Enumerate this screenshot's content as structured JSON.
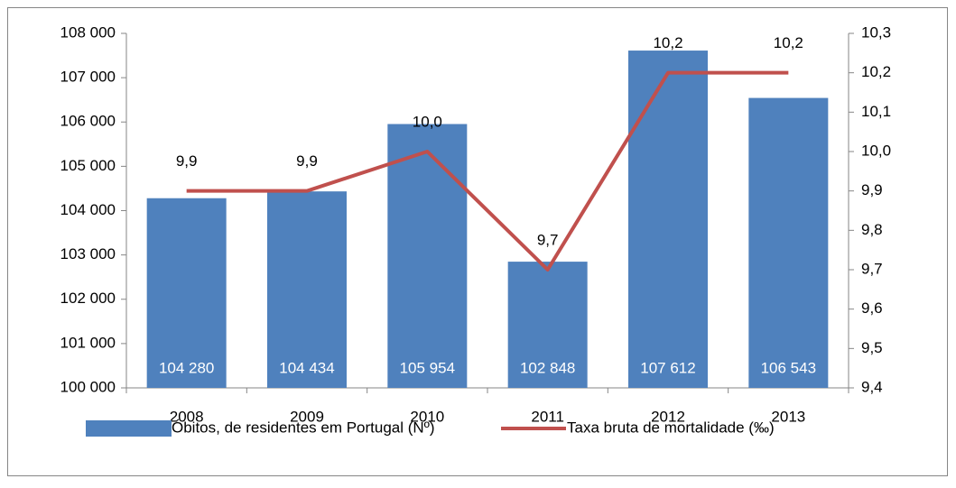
{
  "chart_data": {
    "type": "combo",
    "categories": [
      "2008",
      "2009",
      "2010",
      "2011",
      "2012",
      "2013"
    ],
    "series": [
      {
        "name": "Óbitos, de residentes em Portugal (Nº)",
        "type": "bar",
        "color": "#4f81bd",
        "values": [
          104280,
          104434,
          105954,
          102848,
          107612,
          106543
        ],
        "value_labels": [
          "104 280",
          "104 434",
          "105 954",
          "102 848",
          "107 612",
          "106 543"
        ]
      },
      {
        "name": "Taxa bruta de mortalidade  (‰)",
        "type": "line",
        "axis": "y2",
        "color": "#c0504d",
        "values": [
          9.9,
          9.9,
          10.0,
          9.7,
          10.2,
          10.2
        ],
        "value_labels": [
          "9,9",
          "9,9",
          "10,0",
          "9,7",
          "10,2",
          "10,2"
        ]
      }
    ],
    "ylim": [
      100000,
      108000
    ],
    "yticks": [
      {
        "value": 100000,
        "label": "100 000"
      },
      {
        "value": 101000,
        "label": "101 000"
      },
      {
        "value": 102000,
        "label": "102 000"
      },
      {
        "value": 103000,
        "label": "103 000"
      },
      {
        "value": 104000,
        "label": "104 000"
      },
      {
        "value": 105000,
        "label": "105 000"
      },
      {
        "value": 106000,
        "label": "106 000"
      },
      {
        "value": 107000,
        "label": "107 000"
      },
      {
        "value": 108000,
        "label": "108 000"
      }
    ],
    "y2lim": [
      9.4,
      10.3
    ],
    "y2ticks": [
      {
        "value": 9.4,
        "label": "9,4"
      },
      {
        "value": 9.5,
        "label": "9,5"
      },
      {
        "value": 9.6,
        "label": "9,6"
      },
      {
        "value": 9.7,
        "label": "9,7"
      },
      {
        "value": 9.8,
        "label": "9,8"
      },
      {
        "value": 9.9,
        "label": "9,9"
      },
      {
        "value": 10.0,
        "label": "10,0"
      },
      {
        "value": 10.1,
        "label": "10,1"
      },
      {
        "value": 10.2,
        "label": "10,2"
      },
      {
        "value": 10.3,
        "label": "10,3"
      }
    ],
    "legend": "bottom",
    "grid": false
  }
}
